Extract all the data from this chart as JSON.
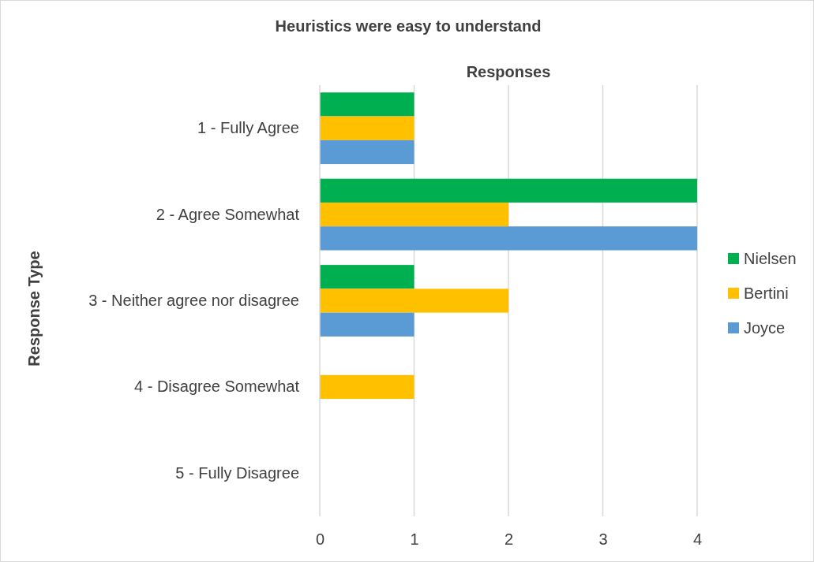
{
  "chart_data": {
    "type": "bar",
    "orientation": "horizontal",
    "title": "Heuristics were easy to understand",
    "xlabel": "Responses",
    "ylabel": "Response Type",
    "categories": [
      "1 - Fully Agree",
      "2 - Agree Somewhat",
      "3 - Neither agree nor disagree",
      "4 - Disagree Somewhat",
      "5 - Fully Disagree"
    ],
    "series": [
      {
        "name": "Nielsen",
        "color": "#00b050",
        "values": [
          1,
          4,
          1,
          0,
          0
        ]
      },
      {
        "name": "Bertini",
        "color": "#ffc000",
        "values": [
          1,
          2,
          2,
          1,
          0
        ]
      },
      {
        "name": "Joyce",
        "color": "#5b9bd5",
        "values": [
          1,
          4,
          1,
          0,
          0
        ]
      }
    ],
    "xlim": [
      0,
      4
    ],
    "xticks": [
      0,
      1,
      2,
      3,
      4
    ],
    "grid": "x",
    "legend": "right"
  }
}
